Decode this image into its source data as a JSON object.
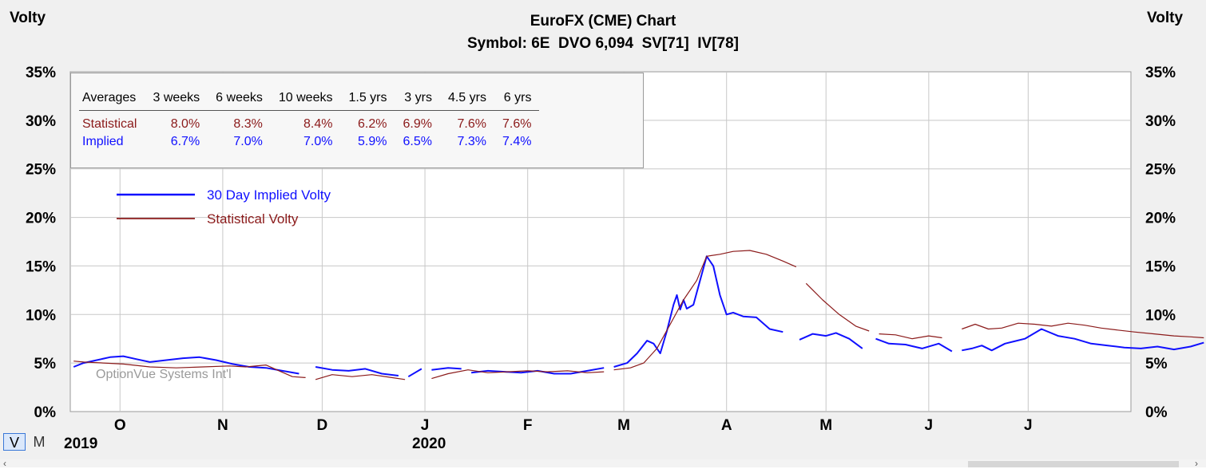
{
  "header": {
    "left_axis_label": "Volty",
    "right_axis_label": "Volty",
    "title": "EuroFX (CME) Chart",
    "subtitle": "Symbol: 6E  DVO 6,094  SV[71]  IV[78]"
  },
  "view_toggle": {
    "v_label": "V",
    "m_label": "M"
  },
  "averages": {
    "header": [
      "Averages",
      "3 weeks",
      "6 weeks",
      "10 weeks",
      "1.5 yrs",
      "3 yrs",
      "4.5 yrs",
      "6 yrs"
    ],
    "rows": [
      {
        "label": "Statistical",
        "values": [
          "8.0%",
          "8.3%",
          "8.4%",
          "6.2%",
          "6.9%",
          "7.6%",
          "7.6%"
        ]
      },
      {
        "label": "Implied",
        "values": [
          "6.7%",
          "7.0%",
          "7.0%",
          "5.9%",
          "6.5%",
          "7.3%",
          "7.4%"
        ]
      }
    ]
  },
  "colors": {
    "implied": "#1010ff",
    "statistical": "#8b1a1a",
    "grid": "#c8c8c8",
    "plot_bg": "#ffffff",
    "frame_bg": "#f0f0f0"
  },
  "watermark": "OptionVue Systems Int'l",
  "chart_data": {
    "type": "line",
    "y_ticks": [
      "0%",
      "5%",
      "10%",
      "15%",
      "20%",
      "25%",
      "30%",
      "35%"
    ],
    "ylim": [
      0,
      35
    ],
    "x_start": "2019-09-16",
    "x_end": "2020-08-01",
    "month_ticks": [
      {
        "label": "O",
        "date": "2019-10-01"
      },
      {
        "label": "N",
        "date": "2019-11-01"
      },
      {
        "label": "D",
        "date": "2019-12-01"
      },
      {
        "label": "J",
        "date": "2020-01-01"
      },
      {
        "label": "F",
        "date": "2020-02-01"
      },
      {
        "label": "M",
        "date": "2020-03-01"
      },
      {
        "label": "A",
        "date": "2020-04-01"
      },
      {
        "label": "M",
        "date": "2020-05-01"
      },
      {
        "label": "J",
        "date": "2020-06-01"
      },
      {
        "label": "J",
        "date": "2020-07-01"
      }
    ],
    "year_labels": [
      {
        "label": "2019",
        "date": "2019-09-16"
      },
      {
        "label": "2020",
        "date": "2020-01-01"
      }
    ],
    "legend_placement": "top-left",
    "grid": true,
    "series": [
      {
        "name": "30 Day Implied Volty",
        "points": [
          [
            "2019-09-17",
            4.6
          ],
          [
            "2019-09-20",
            5.0
          ],
          [
            "2019-09-24",
            5.3
          ],
          [
            "2019-09-28",
            5.6
          ],
          [
            "2019-10-02",
            5.7
          ],
          [
            "2019-10-06",
            5.4
          ],
          [
            "2019-10-10",
            5.1
          ],
          [
            "2019-10-15",
            5.3
          ],
          [
            "2019-10-20",
            5.5
          ],
          [
            "2019-10-25",
            5.6
          ],
          [
            "2019-10-30",
            5.3
          ],
          [
            "2019-11-04",
            4.9
          ],
          [
            "2019-11-09",
            4.6
          ],
          [
            "2019-11-14",
            4.5
          ],
          [
            "2019-11-19",
            4.2
          ],
          [
            "2019-11-24",
            3.9
          ],
          null,
          [
            "2019-11-29",
            4.6
          ],
          [
            "2019-12-04",
            4.3
          ],
          [
            "2019-12-09",
            4.2
          ],
          [
            "2019-12-14",
            4.4
          ],
          [
            "2019-12-19",
            3.9
          ],
          [
            "2019-12-24",
            3.7
          ],
          null,
          [
            "2019-12-27",
            3.6
          ],
          [
            "2019-12-31",
            4.4
          ],
          null,
          [
            "2020-01-03",
            4.3
          ],
          [
            "2020-01-08",
            4.5
          ],
          [
            "2020-01-12",
            4.4
          ],
          null,
          [
            "2020-01-15",
            4.0
          ],
          [
            "2020-01-20",
            4.2
          ],
          [
            "2020-01-25",
            4.1
          ],
          [
            "2020-01-30",
            4.0
          ],
          [
            "2020-02-04",
            4.2
          ],
          [
            "2020-02-09",
            3.9
          ],
          [
            "2020-02-14",
            3.9
          ],
          [
            "2020-02-19",
            4.2
          ],
          [
            "2020-02-24",
            4.5
          ],
          null,
          [
            "2020-02-27",
            4.6
          ],
          [
            "2020-03-02",
            5.0
          ],
          [
            "2020-03-05",
            6.0
          ],
          [
            "2020-03-08",
            7.3
          ],
          [
            "2020-03-10",
            7.0
          ],
          [
            "2020-03-12",
            6.0
          ],
          [
            "2020-03-14",
            8.3
          ],
          [
            "2020-03-16",
            11.0
          ],
          [
            "2020-03-17",
            12.0
          ],
          [
            "2020-03-18",
            10.5
          ],
          [
            "2020-03-19",
            11.5
          ],
          [
            "2020-03-20",
            10.6
          ],
          [
            "2020-03-22",
            11.0
          ],
          [
            "2020-03-24",
            13.5
          ],
          [
            "2020-03-26",
            16.0
          ],
          [
            "2020-03-28",
            15.0
          ],
          [
            "2020-03-30",
            12.0
          ],
          [
            "2020-04-01",
            10.0
          ],
          [
            "2020-04-03",
            10.2
          ],
          [
            "2020-04-06",
            9.8
          ],
          [
            "2020-04-10",
            9.7
          ],
          [
            "2020-04-14",
            8.5
          ],
          [
            "2020-04-18",
            8.2
          ],
          null,
          [
            "2020-04-23",
            7.4
          ],
          [
            "2020-04-27",
            8.0
          ],
          [
            "2020-05-01",
            7.8
          ],
          [
            "2020-05-04",
            8.1
          ],
          [
            "2020-05-08",
            7.5
          ],
          [
            "2020-05-12",
            6.5
          ],
          null,
          [
            "2020-05-16",
            7.5
          ],
          [
            "2020-05-20",
            7.0
          ],
          [
            "2020-05-25",
            6.9
          ],
          [
            "2020-05-30",
            6.5
          ],
          [
            "2020-06-04",
            7.0
          ],
          [
            "2020-06-08",
            6.2
          ],
          null,
          [
            "2020-06-11",
            6.3
          ],
          [
            "2020-06-14",
            6.5
          ],
          [
            "2020-06-17",
            6.8
          ],
          [
            "2020-06-20",
            6.3
          ],
          [
            "2020-06-24",
            7.0
          ],
          [
            "2020-06-30",
            7.5
          ],
          [
            "2020-07-05",
            8.5
          ],
          [
            "2020-07-10",
            7.8
          ],
          [
            "2020-07-15",
            7.5
          ],
          [
            "2020-07-20",
            7.0
          ],
          [
            "2020-07-25",
            6.8
          ],
          [
            "2020-07-30",
            6.6
          ],
          [
            "2020-08-04",
            6.5
          ],
          [
            "2020-08-09",
            6.7
          ],
          [
            "2020-08-14",
            6.4
          ],
          [
            "2020-08-19",
            6.7
          ],
          [
            "2020-08-23",
            7.1
          ]
        ]
      },
      {
        "name": "Statistical Volty",
        "points": [
          [
            "2019-09-17",
            5.2
          ],
          [
            "2019-09-20",
            5.1
          ],
          [
            "2019-09-26",
            5.0
          ],
          [
            "2019-10-02",
            4.9
          ],
          [
            "2019-10-10",
            4.6
          ],
          [
            "2019-10-18",
            4.5
          ],
          [
            "2019-10-26",
            4.6
          ],
          [
            "2019-11-03",
            4.7
          ],
          [
            "2019-11-08",
            4.6
          ],
          [
            "2019-11-14",
            4.8
          ],
          [
            "2019-11-18",
            4.2
          ],
          [
            "2019-11-22",
            3.6
          ],
          [
            "2019-11-26",
            3.5
          ],
          null,
          [
            "2019-11-29",
            3.3
          ],
          [
            "2019-12-04",
            3.8
          ],
          [
            "2019-12-10",
            3.6
          ],
          [
            "2019-12-16",
            3.8
          ],
          [
            "2019-12-22",
            3.5
          ],
          [
            "2019-12-26",
            3.3
          ],
          null,
          [
            "2020-01-03",
            3.4
          ],
          [
            "2020-01-08",
            3.9
          ],
          [
            "2020-01-14",
            4.3
          ],
          [
            "2020-01-20",
            4.0
          ],
          [
            "2020-01-26",
            4.1
          ],
          [
            "2020-02-01",
            4.2
          ],
          [
            "2020-02-07",
            4.1
          ],
          [
            "2020-02-13",
            4.2
          ],
          [
            "2020-02-19",
            4.0
          ],
          [
            "2020-02-24",
            4.1
          ],
          null,
          [
            "2020-02-27",
            4.3
          ],
          [
            "2020-03-03",
            4.5
          ],
          [
            "2020-03-07",
            5.0
          ],
          [
            "2020-03-11",
            6.5
          ],
          [
            "2020-03-15",
            9.0
          ],
          [
            "2020-03-19",
            11.5
          ],
          [
            "2020-03-23",
            13.5
          ],
          [
            "2020-03-26",
            16.0
          ],
          [
            "2020-03-30",
            16.2
          ],
          [
            "2020-04-03",
            16.5
          ],
          [
            "2020-04-08",
            16.6
          ],
          [
            "2020-04-13",
            16.2
          ],
          [
            "2020-04-18",
            15.5
          ],
          [
            "2020-04-22",
            14.9
          ],
          null,
          [
            "2020-04-25",
            13.2
          ],
          [
            "2020-04-30",
            11.5
          ],
          [
            "2020-05-05",
            10.0
          ],
          [
            "2020-05-10",
            8.8
          ],
          [
            "2020-05-14",
            8.3
          ],
          null,
          [
            "2020-05-17",
            8.0
          ],
          [
            "2020-05-22",
            7.9
          ],
          [
            "2020-05-27",
            7.5
          ],
          [
            "2020-06-01",
            7.8
          ],
          [
            "2020-06-05",
            7.6
          ],
          null,
          [
            "2020-06-11",
            8.5
          ],
          [
            "2020-06-15",
            9.0
          ],
          [
            "2020-06-19",
            8.5
          ],
          [
            "2020-06-23",
            8.6
          ],
          [
            "2020-06-28",
            9.1
          ],
          [
            "2020-07-03",
            9.0
          ],
          [
            "2020-07-08",
            8.8
          ],
          [
            "2020-07-13",
            9.1
          ],
          [
            "2020-07-18",
            8.9
          ],
          [
            "2020-07-23",
            8.6
          ],
          [
            "2020-07-28",
            8.4
          ],
          [
            "2020-08-02",
            8.2
          ],
          [
            "2020-08-08",
            8.0
          ],
          [
            "2020-08-14",
            7.8
          ],
          [
            "2020-08-19",
            7.7
          ],
          [
            "2020-08-23",
            7.6
          ]
        ]
      }
    ]
  }
}
